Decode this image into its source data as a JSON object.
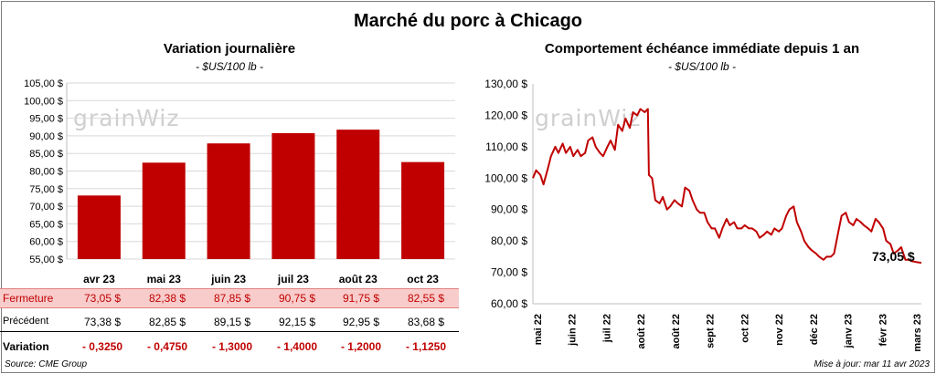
{
  "main_title": "Marché du porc à Chicago",
  "left": {
    "title": "Variation journalière",
    "unit": "- $US/100 lb -"
  },
  "right": {
    "title": "Comportement  échéance immédiate depuis 1 an",
    "unit": "- $US/100 lb -",
    "last_label": "73,05 $"
  },
  "watermark": "grainWiz",
  "table": {
    "close_label": "Fermeture",
    "prev_label": "Précédent",
    "var_label": "Variation",
    "close": [
      "73,05  $",
      "82,38  $",
      "87,85  $",
      "90,75  $",
      "91,75  $",
      "82,55  $"
    ],
    "prev": [
      "73,38  $",
      "82,85  $",
      "89,15  $",
      "92,15  $",
      "92,95  $",
      "83,68  $"
    ],
    "var": [
      "- 0,3250",
      "- 0,4750",
      "- 1,3000",
      "- 1,4000",
      "- 1,2000",
      "- 1,1250"
    ]
  },
  "footer": {
    "source": "Source: CME Group",
    "update": "Mise à jour: mar 11 avr 2023"
  },
  "colors": {
    "bar": "#c00000",
    "line": "#c00000",
    "close_row_bg": "#f8cccb"
  },
  "chart_data": [
    {
      "type": "bar",
      "title": "Variation journalière",
      "categories": [
        "avr 23",
        "mai 23",
        "juin 23",
        "juil 23",
        "août 23",
        "oct 23"
      ],
      "values": [
        73.05,
        82.38,
        87.85,
        90.75,
        91.75,
        82.55
      ],
      "ylim": [
        55,
        105
      ],
      "yticks": [
        55,
        60,
        65,
        70,
        75,
        80,
        85,
        90,
        95,
        100,
        105
      ],
      "ytick_labels": [
        "55,00 $",
        "60,00 $",
        "65,00 $",
        "70,00 $",
        "75,00 $",
        "80,00 $",
        "85,00 $",
        "90,00 $",
        "95,00 $",
        "100,00 $",
        "105,00 $"
      ],
      "grid": true
    },
    {
      "type": "line",
      "title": "Comportement  échéance immédiate depuis 1 an",
      "x_labels": [
        "mai 22",
        "juin 22",
        "juil 22",
        "août 22",
        "août 22",
        "sept 22",
        "oct 22",
        "nov 22",
        "déc 22",
        "janv 23",
        "févr 23",
        "mars 23"
      ],
      "ylim": [
        60,
        130
      ],
      "yticks": [
        60,
        70,
        80,
        90,
        100,
        110,
        120,
        130
      ],
      "ytick_labels": [
        "60,00 $",
        "70,00 $",
        "80,00 $",
        "90,00 $",
        "100,00 $",
        "110,00 $",
        "120,00 $",
        "130,00 $"
      ],
      "x": [
        "2022-04-11",
        "2022-04-14",
        "2022-04-18",
        "2022-04-21",
        "2022-04-25",
        "2022-04-28",
        "2022-05-02",
        "2022-05-05",
        "2022-05-09",
        "2022-05-12",
        "2022-05-16",
        "2022-05-19",
        "2022-05-23",
        "2022-05-26",
        "2022-05-30",
        "2022-06-02",
        "2022-06-06",
        "2022-06-09",
        "2022-06-13",
        "2022-06-16",
        "2022-06-20",
        "2022-06-23",
        "2022-06-27",
        "2022-06-30",
        "2022-07-04",
        "2022-07-07",
        "2022-07-11",
        "2022-07-14",
        "2022-07-18",
        "2022-07-21",
        "2022-07-25",
        "2022-07-28",
        "2022-07-29",
        "2022-08-01",
        "2022-08-04",
        "2022-08-08",
        "2022-08-11",
        "2022-08-15",
        "2022-08-18",
        "2022-08-22",
        "2022-08-25",
        "2022-08-29",
        "2022-09-01",
        "2022-09-05",
        "2022-09-08",
        "2022-09-12",
        "2022-09-15",
        "2022-09-19",
        "2022-09-22",
        "2022-09-26",
        "2022-09-29",
        "2022-10-03",
        "2022-10-06",
        "2022-10-10",
        "2022-10-13",
        "2022-10-17",
        "2022-10-20",
        "2022-10-24",
        "2022-10-27",
        "2022-10-31",
        "2022-11-03",
        "2022-11-07",
        "2022-11-10",
        "2022-11-14",
        "2022-11-17",
        "2022-11-21",
        "2022-11-24",
        "2022-11-28",
        "2022-12-01",
        "2022-12-05",
        "2022-12-08",
        "2022-12-12",
        "2022-12-15",
        "2022-12-19",
        "2022-12-22",
        "2022-12-26",
        "2022-12-29",
        "2023-01-02",
        "2023-01-05",
        "2023-01-09",
        "2023-01-12",
        "2023-01-16",
        "2023-01-19",
        "2023-01-23",
        "2023-01-26",
        "2023-01-30",
        "2023-02-02",
        "2023-02-06",
        "2023-02-09",
        "2023-02-13",
        "2023-02-16",
        "2023-02-20",
        "2023-02-23",
        "2023-02-27",
        "2023-03-02",
        "2023-03-06",
        "2023-03-09",
        "2023-03-13",
        "2023-03-16",
        "2023-03-20",
        "2023-03-23",
        "2023-03-27",
        "2023-03-30",
        "2023-04-03",
        "2023-04-06",
        "2023-04-11"
      ],
      "y": [
        100,
        102.5,
        101,
        98,
        103,
        107,
        110,
        108,
        111,
        108,
        110,
        107,
        109,
        107,
        108,
        112,
        113,
        110,
        108,
        107,
        110,
        112,
        109,
        117,
        115,
        119,
        116,
        121,
        120,
        122,
        121,
        122,
        101,
        100,
        93,
        92,
        94,
        90,
        91,
        93,
        92,
        91,
        97,
        96,
        93,
        90,
        89,
        89,
        86,
        84,
        84,
        81,
        84,
        87,
        85,
        86,
        84,
        84,
        85,
        84,
        84,
        83,
        81,
        82,
        83,
        82,
        84,
        83,
        84,
        88,
        90,
        91,
        86,
        83,
        80,
        78,
        77,
        76,
        75,
        74,
        75,
        75,
        76,
        83,
        88,
        89,
        86,
        85,
        87,
        86,
        85,
        84,
        83,
        87,
        86,
        84,
        80,
        79,
        76,
        77,
        78,
        74,
        74,
        73.5,
        73.3,
        73.05
      ],
      "grid": false
    }
  ]
}
